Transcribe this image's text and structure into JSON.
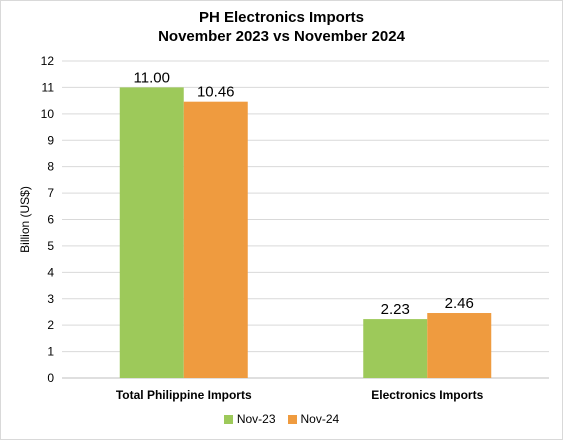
{
  "chart_data": {
    "type": "bar",
    "title": [
      "PH Electronics Imports",
      "November 2023 vs November 2024"
    ],
    "ylabel": "Billion (US$)",
    "xlabel": "",
    "ylim": [
      0,
      12
    ],
    "yticks": [
      0,
      1,
      2,
      3,
      4,
      5,
      6,
      7,
      8,
      9,
      10,
      11,
      12
    ],
    "grid": true,
    "legend_position": "bottom",
    "categories": [
      "Total Philippine Imports",
      "Electronics Imports"
    ],
    "series": [
      {
        "name": "Nov-23",
        "values": [
          11.0,
          2.23
        ],
        "labels": [
          "11.00",
          "2.23"
        ],
        "color": "#9dc95a"
      },
      {
        "name": "Nov-24",
        "values": [
          10.46,
          2.46
        ],
        "labels": [
          "10.46",
          "2.46"
        ],
        "color": "#ef9b3f"
      }
    ]
  }
}
